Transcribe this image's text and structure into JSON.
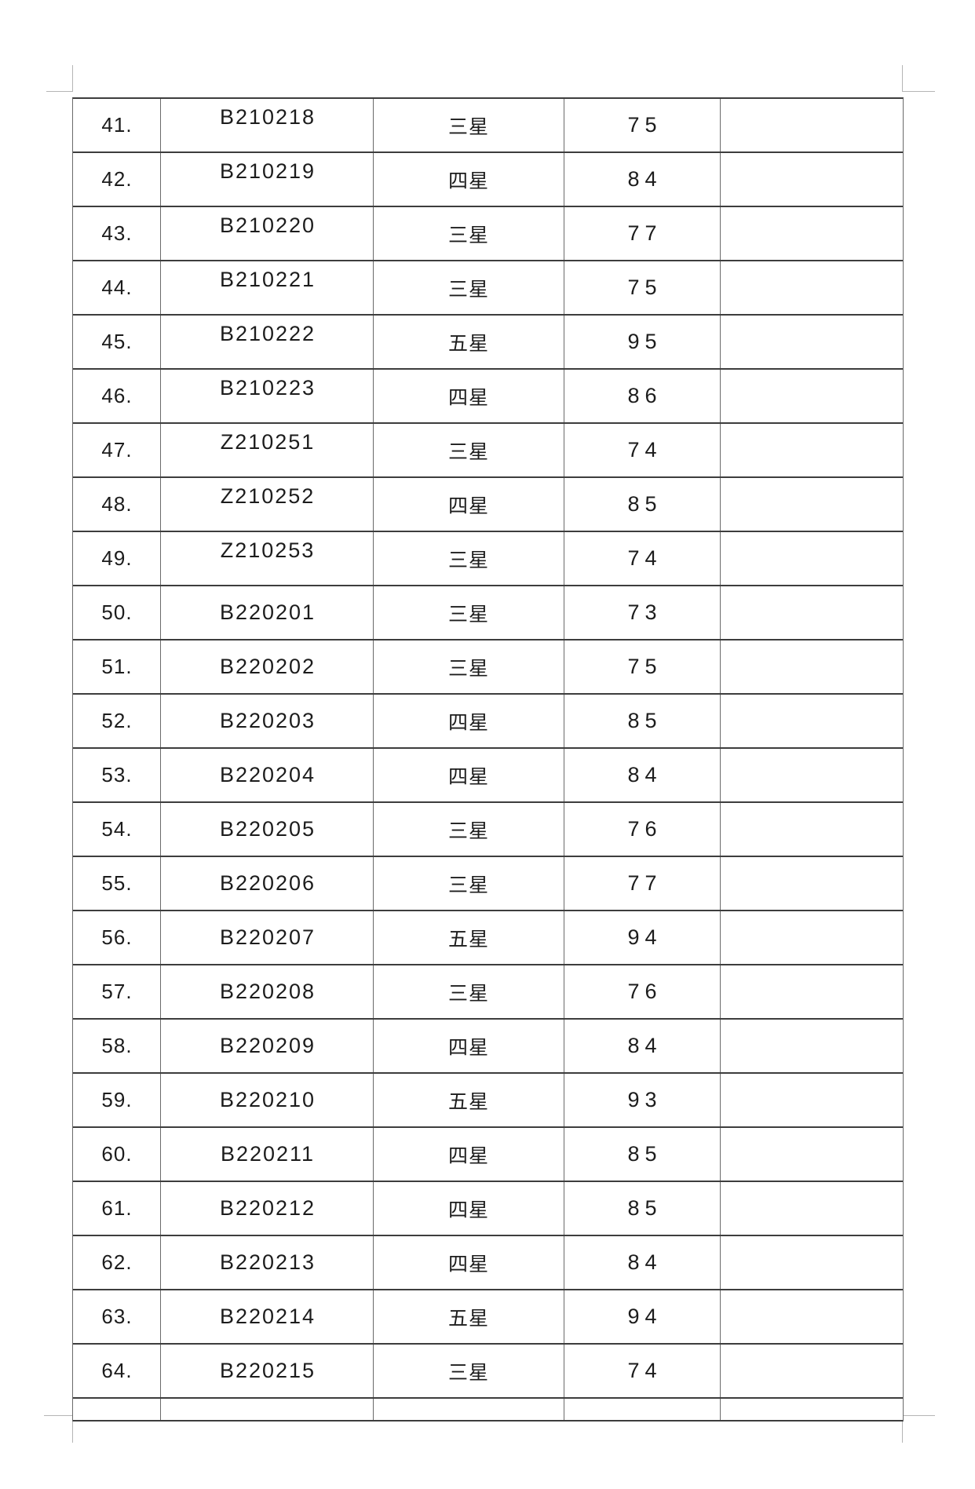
{
  "colors": {
    "page_background": "#ffffff",
    "text": "#1c1c1c",
    "border_horizontal": "#3d3d3d",
    "border_vertical": "#6a6a6a",
    "margin_mark": "#b5b5b5"
  },
  "table": {
    "columns": [
      "row-number",
      "code",
      "star-rating",
      "score",
      "notes"
    ],
    "rows": [
      {
        "no": "41.",
        "code": "B210218",
        "star": "三星",
        "score": "75",
        "note": ""
      },
      {
        "no": "42.",
        "code": "B210219",
        "star": "四星",
        "score": "84",
        "note": ""
      },
      {
        "no": "43.",
        "code": "B210220",
        "star": "三星",
        "score": "77",
        "note": ""
      },
      {
        "no": "44.",
        "code": "B210221",
        "star": "三星",
        "score": "75",
        "note": ""
      },
      {
        "no": "45.",
        "code": "B210222",
        "star": "五星",
        "score": "95",
        "note": ""
      },
      {
        "no": "46.",
        "code": "B210223",
        "star": "四星",
        "score": "86",
        "note": ""
      },
      {
        "no": "47.",
        "code": "Z210251",
        "star": "三星",
        "score": "74",
        "note": ""
      },
      {
        "no": "48.",
        "code": "Z210252",
        "star": "四星",
        "score": "85",
        "note": ""
      },
      {
        "no": "49.",
        "code": "Z210253",
        "star": "三星",
        "score": "74",
        "note": ""
      },
      {
        "no": "50.",
        "code": "B220201",
        "star": "三星",
        "score": "73",
        "note": ""
      },
      {
        "no": "51.",
        "code": "B220202",
        "star": "三星",
        "score": "75",
        "note": ""
      },
      {
        "no": "52.",
        "code": "B220203",
        "star": "四星",
        "score": "85",
        "note": ""
      },
      {
        "no": "53.",
        "code": "B220204",
        "star": "四星",
        "score": "84",
        "note": ""
      },
      {
        "no": "54.",
        "code": "B220205",
        "star": "三星",
        "score": "76",
        "note": ""
      },
      {
        "no": "55.",
        "code": "B220206",
        "star": "三星",
        "score": "77",
        "note": ""
      },
      {
        "no": "56.",
        "code": "B220207",
        "star": "五星",
        "score": "94",
        "note": ""
      },
      {
        "no": "57.",
        "code": "B220208",
        "star": "三星",
        "score": "76",
        "note": ""
      },
      {
        "no": "58.",
        "code": "B220209",
        "star": "四星",
        "score": "84",
        "note": ""
      },
      {
        "no": "59.",
        "code": "B220210",
        "star": "五星",
        "score": "93",
        "note": ""
      },
      {
        "no": "60.",
        "code": "B220211",
        "star": "四星",
        "score": "85",
        "note": ""
      },
      {
        "no": "61.",
        "code": "B220212",
        "star": "四星",
        "score": "85",
        "note": ""
      },
      {
        "no": "62.",
        "code": "B220213",
        "star": "四星",
        "score": "84",
        "note": ""
      },
      {
        "no": "63.",
        "code": "B220214",
        "star": "五星",
        "score": "94",
        "note": ""
      },
      {
        "no": "64.",
        "code": "B220215",
        "star": "三星",
        "score": "74",
        "note": ""
      }
    ],
    "trailing_empty_row": {
      "no": "",
      "code": "",
      "star": "",
      "score": "",
      "note": ""
    }
  }
}
